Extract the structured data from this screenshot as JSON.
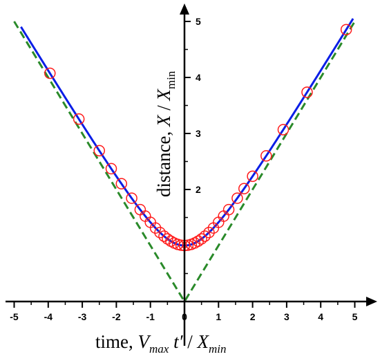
{
  "chart_data": {
    "type": "line",
    "x_axis": {
      "ticks": [
        -5,
        -4,
        -3,
        -2,
        -1,
        0,
        1,
        2,
        3,
        4,
        5
      ],
      "range": [
        -5.2,
        5.5
      ],
      "label_main": "time, ",
      "label_v": "V",
      "label_v_sub": "max",
      "label_t": " t′",
      "label_div": " / ",
      "label_x": "X",
      "label_x_sub": "min"
    },
    "y_axis": {
      "ticks": [
        2,
        3,
        4,
        5
      ],
      "range": [
        0,
        5.4
      ],
      "label_main": "distance, ",
      "label_x": "X",
      "label_div": " / ",
      "label_x2": "X",
      "label_sub": "min"
    },
    "series": [
      {
        "kind": "solid-curve",
        "color": "#0a1ee6",
        "formula": "sqrt(1 + t^2)",
        "x_range": [
          -4.8,
          4.95
        ]
      },
      {
        "kind": "dashed-asymptote",
        "color": "#2a8a2a",
        "formula": "|t|",
        "x_range": [
          -5,
          5
        ]
      },
      {
        "kind": "circle-markers",
        "color": "#ff1a1a",
        "x": [
          -3.95,
          -3.1,
          -2.5,
          -2.15,
          -1.85,
          -1.55,
          -1.3,
          -1.15,
          -1.0,
          -0.85,
          -0.72,
          -0.6,
          -0.5,
          -0.4,
          -0.3,
          -0.2,
          -0.1,
          0.0,
          0.1,
          0.2,
          0.3,
          0.4,
          0.5,
          0.6,
          0.72,
          0.85,
          1.0,
          1.15,
          1.3,
          1.55,
          1.75,
          2.0,
          2.4,
          2.9,
          3.6,
          4.75
        ]
      }
    ],
    "grid": false
  }
}
